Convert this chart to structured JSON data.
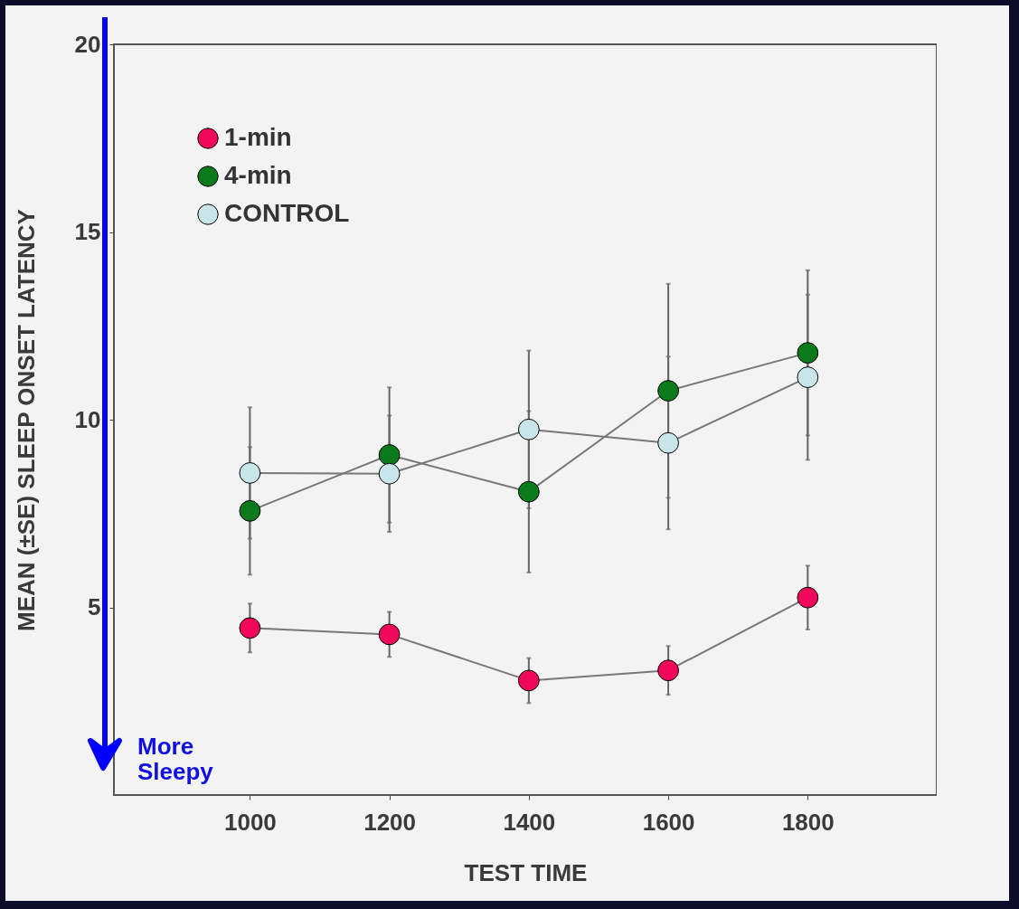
{
  "chart_data": {
    "type": "line",
    "xlabel": "TEST TIME",
    "ylabel": "MEAN (±SE)   SLEEP ONSET LATENCY",
    "x": [
      1000,
      1200,
      1400,
      1600,
      1800
    ],
    "series": [
      {
        "name": "1-min",
        "color": "#f0065a",
        "values": [
          4.45,
          4.28,
          3.05,
          3.32,
          5.26
        ],
        "errors": [
          0.65,
          0.6,
          0.6,
          0.65,
          0.85
        ]
      },
      {
        "name": "4-min",
        "color": "#0a7a1a",
        "values": [
          7.57,
          9.06,
          8.08,
          10.77,
          11.78
        ],
        "errors": [
          1.7,
          1.8,
          2.15,
          2.85,
          2.2
        ]
      },
      {
        "name": "CONTROL",
        "color": "#c8e6ea",
        "values": [
          8.58,
          8.56,
          9.74,
          9.38,
          11.13
        ],
        "errors": [
          1.75,
          1.55,
          2.1,
          2.3,
          2.2
        ]
      }
    ],
    "xlim": [
      805,
      1985
    ],
    "xticks": [
      1000,
      1200,
      1400,
      1600,
      1800
    ],
    "ylim": [
      0,
      20
    ],
    "yticks": [
      5,
      10,
      15,
      20
    ],
    "legend": "top left",
    "grid": false,
    "marker": "circle",
    "line_style": "solid",
    "annotations": [
      "More Sleepy"
    ]
  }
}
